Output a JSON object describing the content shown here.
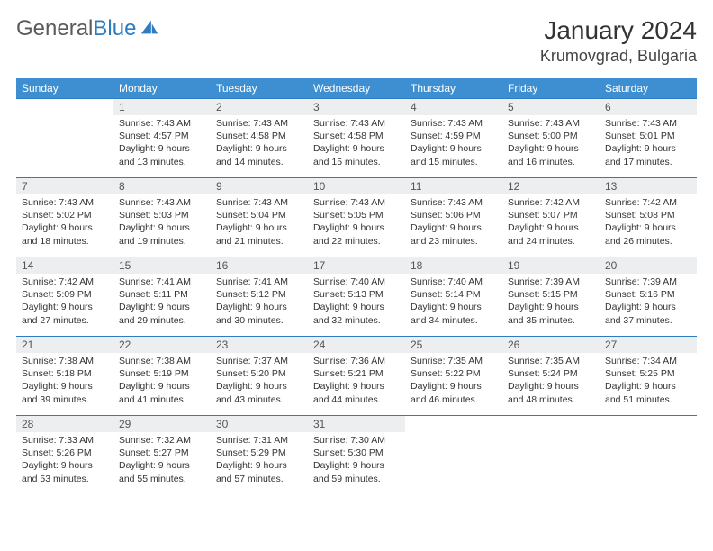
{
  "logo": {
    "word1": "General",
    "word2": "Blue"
  },
  "title": "January 2024",
  "location": "Krumovgrad, Bulgaria",
  "colors": {
    "header_bg": "#3d8fd1",
    "header_text": "#ffffff",
    "rule": "#2e7cc0",
    "daynum_bg": "#eceeef",
    "text": "#333333",
    "logo_gray": "#5a5a5a",
    "logo_blue": "#2e7cc0"
  },
  "typography": {
    "month_title_fontsize": 28,
    "location_fontsize": 18,
    "dayheader_fontsize": 12,
    "daynum_fontsize": 12,
    "body_fontsize": 10.5,
    "logo_fontsize": 24
  },
  "day_headers": [
    "Sunday",
    "Monday",
    "Tuesday",
    "Wednesday",
    "Thursday",
    "Friday",
    "Saturday"
  ],
  "first_weekday_index": 1,
  "days": [
    {
      "n": 1,
      "sunrise": "7:43 AM",
      "sunset": "4:57 PM",
      "daylight": "9 hours and 13 minutes."
    },
    {
      "n": 2,
      "sunrise": "7:43 AM",
      "sunset": "4:58 PM",
      "daylight": "9 hours and 14 minutes."
    },
    {
      "n": 3,
      "sunrise": "7:43 AM",
      "sunset": "4:58 PM",
      "daylight": "9 hours and 15 minutes."
    },
    {
      "n": 4,
      "sunrise": "7:43 AM",
      "sunset": "4:59 PM",
      "daylight": "9 hours and 15 minutes."
    },
    {
      "n": 5,
      "sunrise": "7:43 AM",
      "sunset": "5:00 PM",
      "daylight": "9 hours and 16 minutes."
    },
    {
      "n": 6,
      "sunrise": "7:43 AM",
      "sunset": "5:01 PM",
      "daylight": "9 hours and 17 minutes."
    },
    {
      "n": 7,
      "sunrise": "7:43 AM",
      "sunset": "5:02 PM",
      "daylight": "9 hours and 18 minutes."
    },
    {
      "n": 8,
      "sunrise": "7:43 AM",
      "sunset": "5:03 PM",
      "daylight": "9 hours and 19 minutes."
    },
    {
      "n": 9,
      "sunrise": "7:43 AM",
      "sunset": "5:04 PM",
      "daylight": "9 hours and 21 minutes."
    },
    {
      "n": 10,
      "sunrise": "7:43 AM",
      "sunset": "5:05 PM",
      "daylight": "9 hours and 22 minutes."
    },
    {
      "n": 11,
      "sunrise": "7:43 AM",
      "sunset": "5:06 PM",
      "daylight": "9 hours and 23 minutes."
    },
    {
      "n": 12,
      "sunrise": "7:42 AM",
      "sunset": "5:07 PM",
      "daylight": "9 hours and 24 minutes."
    },
    {
      "n": 13,
      "sunrise": "7:42 AM",
      "sunset": "5:08 PM",
      "daylight": "9 hours and 26 minutes."
    },
    {
      "n": 14,
      "sunrise": "7:42 AM",
      "sunset": "5:09 PM",
      "daylight": "9 hours and 27 minutes."
    },
    {
      "n": 15,
      "sunrise": "7:41 AM",
      "sunset": "5:11 PM",
      "daylight": "9 hours and 29 minutes."
    },
    {
      "n": 16,
      "sunrise": "7:41 AM",
      "sunset": "5:12 PM",
      "daylight": "9 hours and 30 minutes."
    },
    {
      "n": 17,
      "sunrise": "7:40 AM",
      "sunset": "5:13 PM",
      "daylight": "9 hours and 32 minutes."
    },
    {
      "n": 18,
      "sunrise": "7:40 AM",
      "sunset": "5:14 PM",
      "daylight": "9 hours and 34 minutes."
    },
    {
      "n": 19,
      "sunrise": "7:39 AM",
      "sunset": "5:15 PM",
      "daylight": "9 hours and 35 minutes."
    },
    {
      "n": 20,
      "sunrise": "7:39 AM",
      "sunset": "5:16 PM",
      "daylight": "9 hours and 37 minutes."
    },
    {
      "n": 21,
      "sunrise": "7:38 AM",
      "sunset": "5:18 PM",
      "daylight": "9 hours and 39 minutes."
    },
    {
      "n": 22,
      "sunrise": "7:38 AM",
      "sunset": "5:19 PM",
      "daylight": "9 hours and 41 minutes."
    },
    {
      "n": 23,
      "sunrise": "7:37 AM",
      "sunset": "5:20 PM",
      "daylight": "9 hours and 43 minutes."
    },
    {
      "n": 24,
      "sunrise": "7:36 AM",
      "sunset": "5:21 PM",
      "daylight": "9 hours and 44 minutes."
    },
    {
      "n": 25,
      "sunrise": "7:35 AM",
      "sunset": "5:22 PM",
      "daylight": "9 hours and 46 minutes."
    },
    {
      "n": 26,
      "sunrise": "7:35 AM",
      "sunset": "5:24 PM",
      "daylight": "9 hours and 48 minutes."
    },
    {
      "n": 27,
      "sunrise": "7:34 AM",
      "sunset": "5:25 PM",
      "daylight": "9 hours and 51 minutes."
    },
    {
      "n": 28,
      "sunrise": "7:33 AM",
      "sunset": "5:26 PM",
      "daylight": "9 hours and 53 minutes."
    },
    {
      "n": 29,
      "sunrise": "7:32 AM",
      "sunset": "5:27 PM",
      "daylight": "9 hours and 55 minutes."
    },
    {
      "n": 30,
      "sunrise": "7:31 AM",
      "sunset": "5:29 PM",
      "daylight": "9 hours and 57 minutes."
    },
    {
      "n": 31,
      "sunrise": "7:30 AM",
      "sunset": "5:30 PM",
      "daylight": "9 hours and 59 minutes."
    }
  ],
  "labels": {
    "sunrise_prefix": "Sunrise: ",
    "sunset_prefix": "Sunset: ",
    "daylight_prefix": "Daylight: "
  }
}
